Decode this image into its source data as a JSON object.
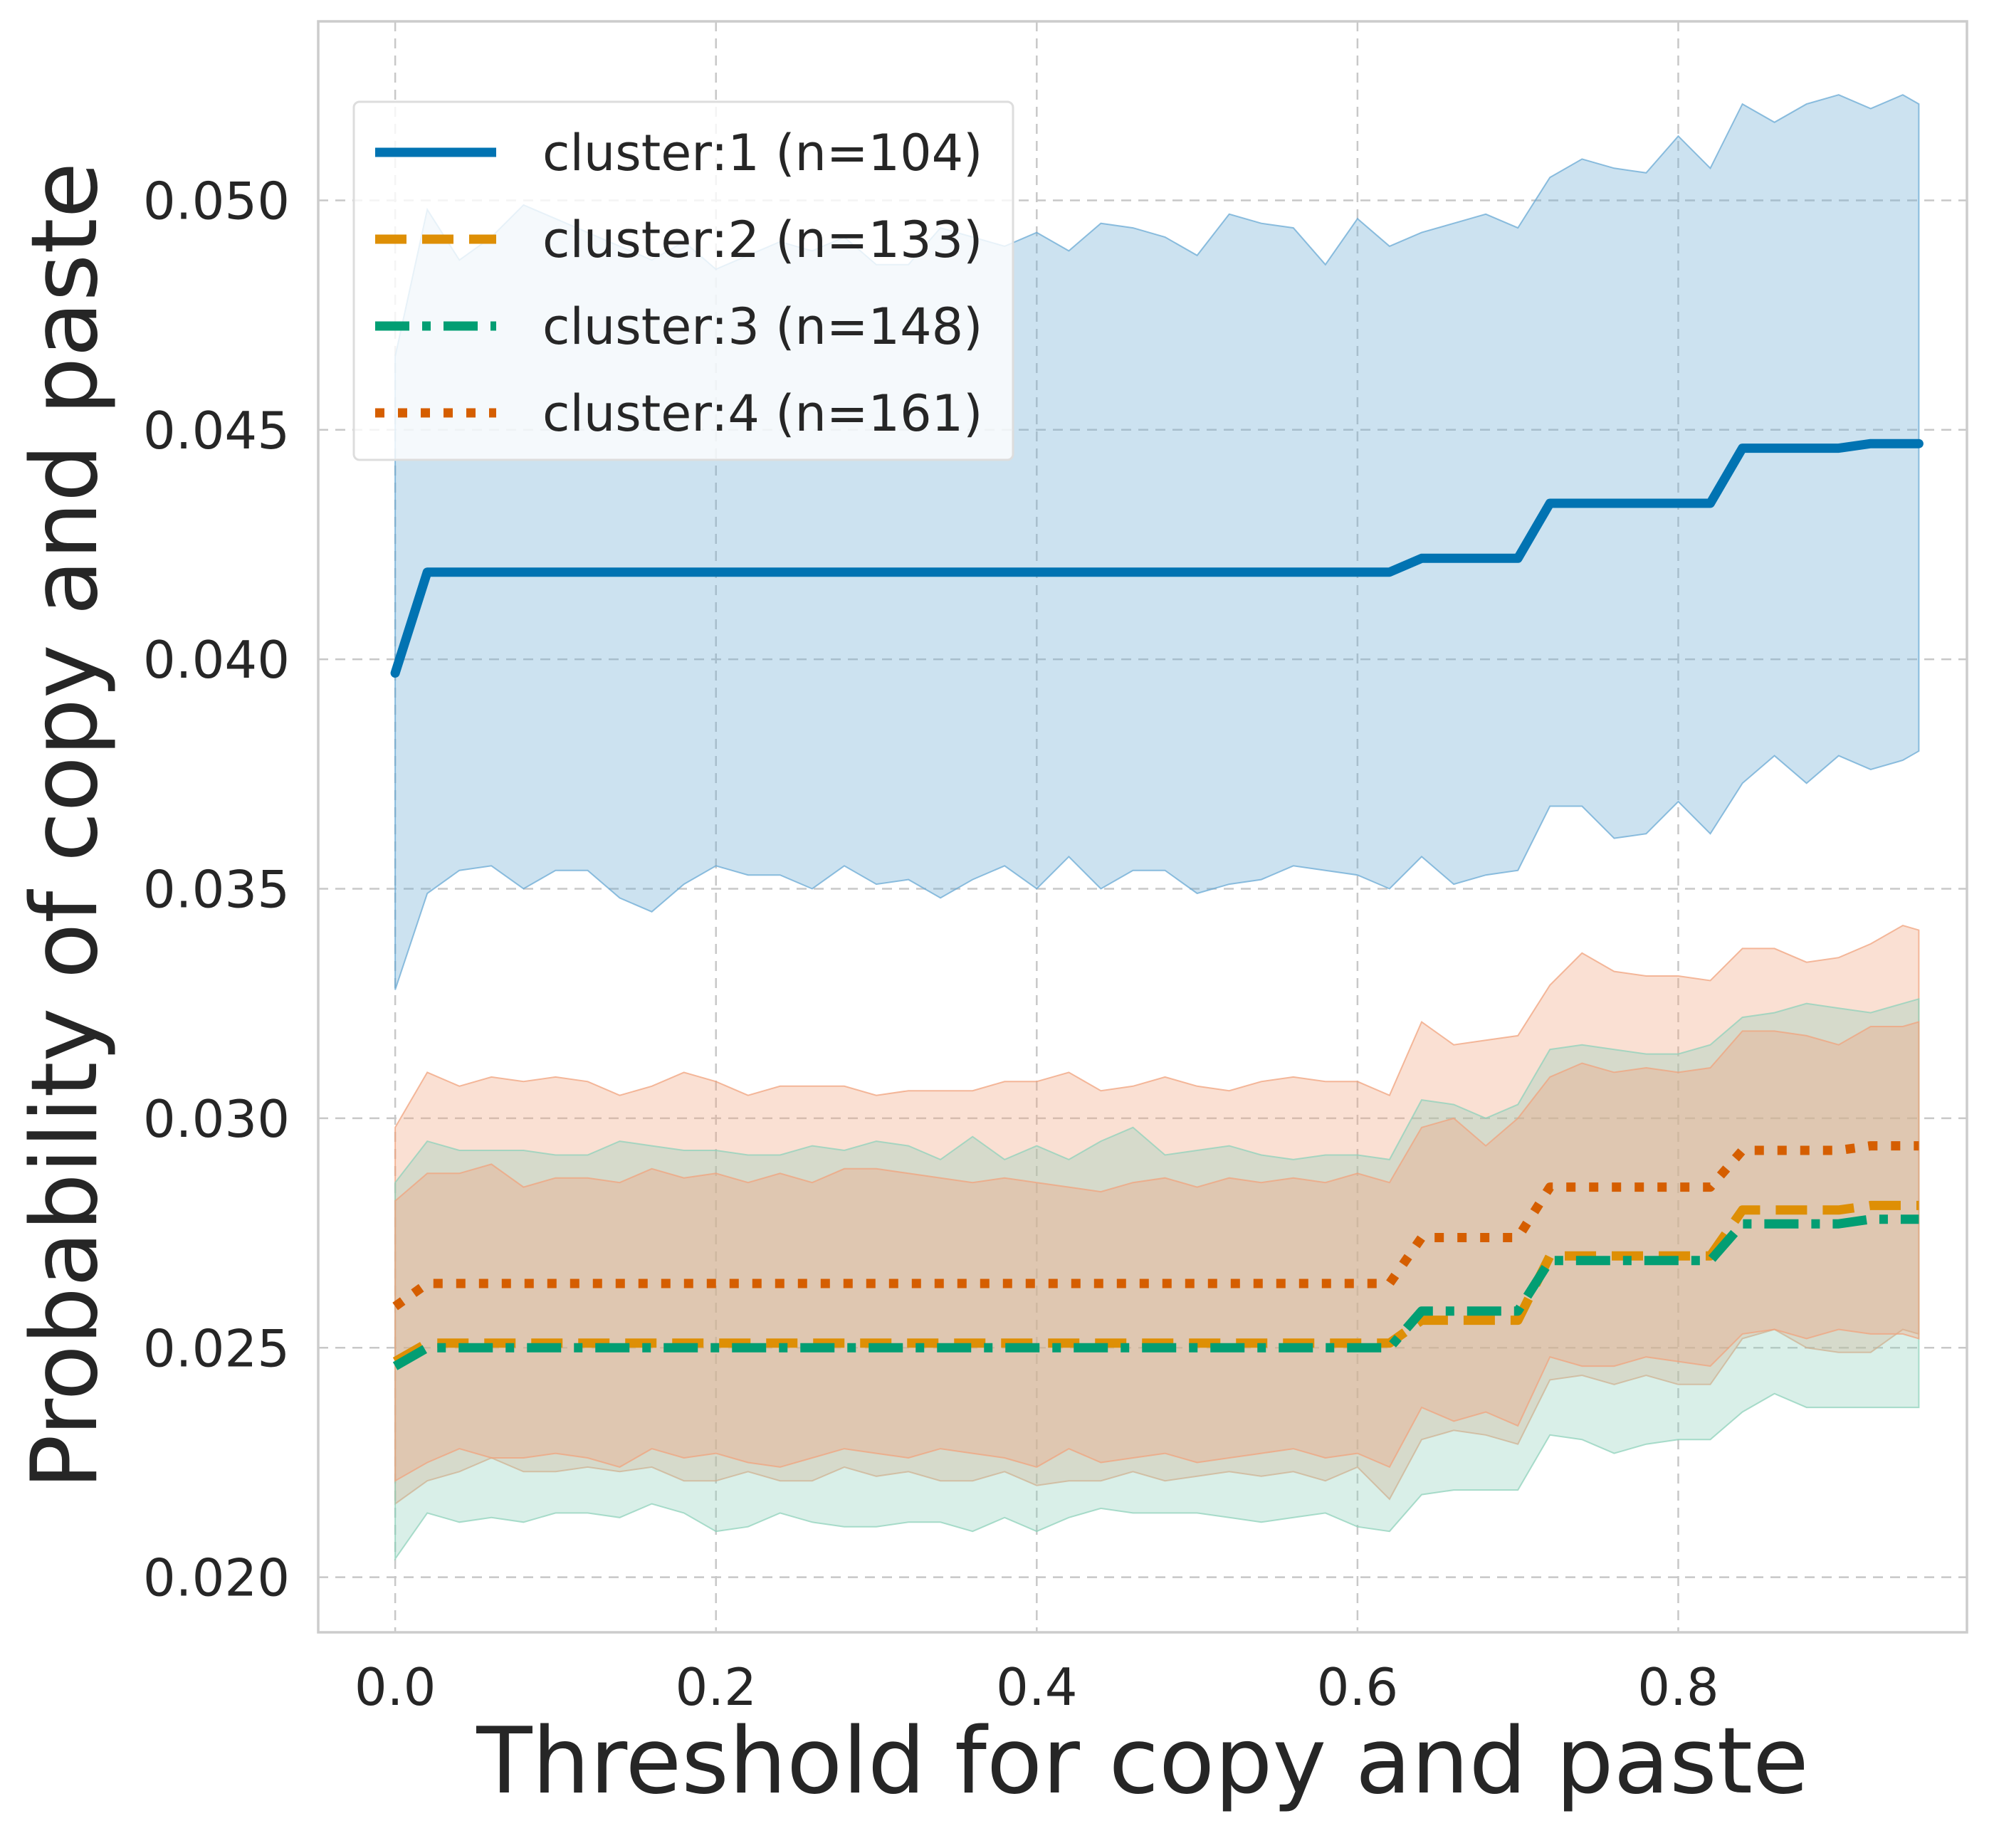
{
  "chart_data": {
    "type": "line",
    "title": "",
    "xlabel": "Threshold for copy and paste",
    "ylabel": "Probability of copy and paste",
    "xlim": [
      -0.048,
      0.98
    ],
    "ylim": [
      0.0188,
      0.0539
    ],
    "xticks": [
      0.0,
      0.2,
      0.4,
      0.6,
      0.8
    ],
    "xtick_labels": [
      "0.0",
      "0.2",
      "0.4",
      "0.6",
      "0.8"
    ],
    "yticks": [
      0.02,
      0.025,
      0.03,
      0.035,
      0.04,
      0.045,
      0.05
    ],
    "ytick_labels": [
      "0.020",
      "0.025",
      "0.030",
      "0.035",
      "0.040",
      "0.045",
      "0.050"
    ],
    "grid": true,
    "legend_position": "upper-left",
    "x": [
      0.0,
      0.02,
      0.04,
      0.06,
      0.08,
      0.1,
      0.12,
      0.14,
      0.16,
      0.18,
      0.2,
      0.22,
      0.24,
      0.26,
      0.28,
      0.3,
      0.32,
      0.34,
      0.36,
      0.38,
      0.4,
      0.42,
      0.44,
      0.46,
      0.48,
      0.5,
      0.52,
      0.54,
      0.56,
      0.58,
      0.6,
      0.62,
      0.64,
      0.66,
      0.68,
      0.7,
      0.72,
      0.74,
      0.76,
      0.78,
      0.8,
      0.82,
      0.84,
      0.86,
      0.88,
      0.9,
      0.92,
      0.94,
      0.95
    ],
    "series": [
      {
        "name": "cluster:1 (n=104)",
        "color": "#0173b2",
        "linestyle": "solid",
        "fill_color": "#6aa9d4",
        "values": [
          0.0397,
          0.0419,
          0.0419,
          0.0419,
          0.0419,
          0.0419,
          0.0419,
          0.0419,
          0.0419,
          0.0419,
          0.0419,
          0.0419,
          0.0419,
          0.0419,
          0.0419,
          0.0419,
          0.0419,
          0.0419,
          0.0419,
          0.0419,
          0.0419,
          0.0419,
          0.0419,
          0.0419,
          0.0419,
          0.0419,
          0.0419,
          0.0419,
          0.0419,
          0.0419,
          0.0419,
          0.0419,
          0.0422,
          0.0422,
          0.0422,
          0.0422,
          0.0434,
          0.0434,
          0.0434,
          0.0434,
          0.0434,
          0.0434,
          0.0446,
          0.0446,
          0.0446,
          0.0446,
          0.0447,
          0.0447,
          0.0447
        ],
        "lower": [
          0.0328,
          0.0349,
          0.0354,
          0.0355,
          0.035,
          0.0354,
          0.0354,
          0.0348,
          0.0345,
          0.0351,
          0.0355,
          0.0353,
          0.0353,
          0.035,
          0.0355,
          0.0351,
          0.0352,
          0.0348,
          0.0352,
          0.0355,
          0.035,
          0.0357,
          0.035,
          0.0354,
          0.0354,
          0.0349,
          0.0351,
          0.0352,
          0.0355,
          0.0354,
          0.0353,
          0.035,
          0.0357,
          0.0351,
          0.0353,
          0.0354,
          0.0368,
          0.0368,
          0.0361,
          0.0362,
          0.0369,
          0.0362,
          0.0373,
          0.0379,
          0.0373,
          0.0379,
          0.0376,
          0.0378,
          0.038
        ],
        "upper": [
          0.0466,
          0.0498,
          0.0487,
          0.0492,
          0.0499,
          0.0496,
          0.0493,
          0.049,
          0.0487,
          0.0491,
          0.0485,
          0.0488,
          0.0491,
          0.0489,
          0.0492,
          0.0486,
          0.0486,
          0.0494,
          0.0492,
          0.049,
          0.0493,
          0.0489,
          0.0495,
          0.0494,
          0.0492,
          0.0488,
          0.0497,
          0.0495,
          0.0494,
          0.0486,
          0.0496,
          0.049,
          0.0493,
          0.0495,
          0.0497,
          0.0494,
          0.0505,
          0.0509,
          0.0507,
          0.0506,
          0.0514,
          0.0507,
          0.0521,
          0.0517,
          0.0521,
          0.0523,
          0.052,
          0.0523,
          0.0521
        ]
      },
      {
        "name": "cluster:2 (n=133)",
        "color": "#de8f05",
        "linestyle": "dashed",
        "fill_color": "#f0a37e",
        "values": [
          0.0247,
          0.0251,
          0.0251,
          0.0251,
          0.0251,
          0.0251,
          0.0251,
          0.0251,
          0.0251,
          0.0251,
          0.0251,
          0.0251,
          0.0251,
          0.0251,
          0.0251,
          0.0251,
          0.0251,
          0.0251,
          0.0251,
          0.0251,
          0.0251,
          0.0251,
          0.0251,
          0.0251,
          0.0251,
          0.0251,
          0.0251,
          0.0251,
          0.0251,
          0.0251,
          0.0251,
          0.0251,
          0.0256,
          0.0256,
          0.0256,
          0.0256,
          0.027,
          0.027,
          0.027,
          0.027,
          0.027,
          0.027,
          0.028,
          0.028,
          0.028,
          0.028,
          0.0281,
          0.0281,
          0.0281
        ],
        "lower": [
          0.0216,
          0.0221,
          0.0223,
          0.0226,
          0.0223,
          0.0223,
          0.0224,
          0.0223,
          0.0224,
          0.0221,
          0.0221,
          0.0223,
          0.0221,
          0.0221,
          0.0224,
          0.0222,
          0.0223,
          0.0221,
          0.0221,
          0.0223,
          0.022,
          0.0221,
          0.0221,
          0.0223,
          0.0221,
          0.0222,
          0.0223,
          0.0222,
          0.0223,
          0.0221,
          0.0224,
          0.0217,
          0.023,
          0.0232,
          0.0231,
          0.0229,
          0.0243,
          0.0244,
          0.0242,
          0.0244,
          0.0242,
          0.0242,
          0.0252,
          0.0254,
          0.025,
          0.0249,
          0.0249,
          0.0254,
          0.0253
        ],
        "upper": [
          0.0298,
          0.031,
          0.0307,
          0.0309,
          0.0308,
          0.0309,
          0.0308,
          0.0305,
          0.0307,
          0.031,
          0.0308,
          0.0305,
          0.0307,
          0.0307,
          0.0307,
          0.0305,
          0.0306,
          0.0306,
          0.0306,
          0.0308,
          0.0308,
          0.031,
          0.0306,
          0.0307,
          0.0309,
          0.0307,
          0.0306,
          0.0308,
          0.0309,
          0.0308,
          0.0308,
          0.0305,
          0.0321,
          0.0316,
          0.0317,
          0.0318,
          0.0329,
          0.0336,
          0.0332,
          0.0331,
          0.0331,
          0.033,
          0.0337,
          0.0337,
          0.0334,
          0.0335,
          0.0338,
          0.0342,
          0.0341
        ]
      },
      {
        "name": "cluster:3 (n=148)",
        "color": "#029e73",
        "linestyle": "dashdot",
        "fill_color": "#8fd1bb",
        "values": [
          0.0246,
          0.025,
          0.025,
          0.025,
          0.025,
          0.025,
          0.025,
          0.025,
          0.025,
          0.025,
          0.025,
          0.025,
          0.025,
          0.025,
          0.025,
          0.025,
          0.025,
          0.025,
          0.025,
          0.025,
          0.025,
          0.025,
          0.025,
          0.025,
          0.025,
          0.025,
          0.025,
          0.025,
          0.025,
          0.025,
          0.025,
          0.025,
          0.0258,
          0.0258,
          0.0258,
          0.0258,
          0.0269,
          0.0269,
          0.0269,
          0.0269,
          0.0269,
          0.0269,
          0.0277,
          0.0277,
          0.0277,
          0.0277,
          0.0278,
          0.0278,
          0.0278
        ],
        "lower": [
          0.0204,
          0.0214,
          0.0212,
          0.0213,
          0.0212,
          0.0214,
          0.0214,
          0.0213,
          0.0216,
          0.0214,
          0.021,
          0.0211,
          0.0214,
          0.0212,
          0.0211,
          0.0211,
          0.0212,
          0.0212,
          0.021,
          0.0213,
          0.021,
          0.0213,
          0.0215,
          0.0214,
          0.0214,
          0.0214,
          0.0213,
          0.0212,
          0.0213,
          0.0214,
          0.0211,
          0.021,
          0.0218,
          0.0219,
          0.0219,
          0.0219,
          0.0231,
          0.023,
          0.0227,
          0.0229,
          0.023,
          0.023,
          0.0236,
          0.024,
          0.0237,
          0.0237,
          0.0237,
          0.0237,
          0.0237
        ],
        "upper": [
          0.0286,
          0.0295,
          0.0293,
          0.0293,
          0.0293,
          0.0292,
          0.0292,
          0.0295,
          0.0294,
          0.0293,
          0.0293,
          0.0292,
          0.0292,
          0.0294,
          0.0293,
          0.0295,
          0.0294,
          0.0291,
          0.0296,
          0.0291,
          0.0294,
          0.0291,
          0.0295,
          0.0298,
          0.0292,
          0.0293,
          0.0294,
          0.0292,
          0.0291,
          0.0292,
          0.0292,
          0.0291,
          0.0304,
          0.0303,
          0.03,
          0.0303,
          0.0315,
          0.0316,
          0.0315,
          0.0314,
          0.0314,
          0.0316,
          0.0322,
          0.0323,
          0.0325,
          0.0324,
          0.0323,
          0.0325,
          0.0326
        ]
      },
      {
        "name": "cluster:4 (n=161)",
        "color": "#d55e00",
        "linestyle": "dotted",
        "fill_color": "#f0a37e",
        "values": [
          0.0259,
          0.0264,
          0.0264,
          0.0264,
          0.0264,
          0.0264,
          0.0264,
          0.0264,
          0.0264,
          0.0264,
          0.0264,
          0.0264,
          0.0264,
          0.0264,
          0.0264,
          0.0264,
          0.0264,
          0.0264,
          0.0264,
          0.0264,
          0.0264,
          0.0264,
          0.0264,
          0.0264,
          0.0264,
          0.0264,
          0.0264,
          0.0264,
          0.0264,
          0.0264,
          0.0264,
          0.0264,
          0.0274,
          0.0274,
          0.0274,
          0.0274,
          0.0285,
          0.0285,
          0.0285,
          0.0285,
          0.0285,
          0.0285,
          0.0293,
          0.0293,
          0.0293,
          0.0293,
          0.0294,
          0.0294,
          0.0294
        ],
        "lower": [
          0.0221,
          0.0225,
          0.0228,
          0.0226,
          0.0226,
          0.0227,
          0.0226,
          0.0224,
          0.0228,
          0.0226,
          0.0227,
          0.0225,
          0.0224,
          0.0226,
          0.0228,
          0.0227,
          0.0226,
          0.0228,
          0.0227,
          0.0226,
          0.0224,
          0.0228,
          0.0225,
          0.0226,
          0.0227,
          0.0225,
          0.0226,
          0.0227,
          0.0228,
          0.0226,
          0.0227,
          0.0224,
          0.0237,
          0.0234,
          0.0236,
          0.0233,
          0.0248,
          0.0246,
          0.0246,
          0.0248,
          0.0247,
          0.0246,
          0.0253,
          0.0254,
          0.0252,
          0.0254,
          0.0253,
          0.0253,
          0.0252
        ],
        "upper": [
          0.0282,
          0.0288,
          0.0288,
          0.029,
          0.0285,
          0.0287,
          0.0287,
          0.0286,
          0.0289,
          0.0287,
          0.0288,
          0.0286,
          0.0288,
          0.0286,
          0.0289,
          0.0289,
          0.0288,
          0.0287,
          0.0286,
          0.0287,
          0.0286,
          0.0285,
          0.0284,
          0.0286,
          0.0287,
          0.0285,
          0.0287,
          0.0286,
          0.0287,
          0.0286,
          0.0288,
          0.0286,
          0.0298,
          0.03,
          0.0294,
          0.03,
          0.0309,
          0.0312,
          0.031,
          0.0311,
          0.031,
          0.0311,
          0.0319,
          0.0319,
          0.0318,
          0.0316,
          0.032,
          0.032,
          0.0321
        ]
      }
    ]
  }
}
